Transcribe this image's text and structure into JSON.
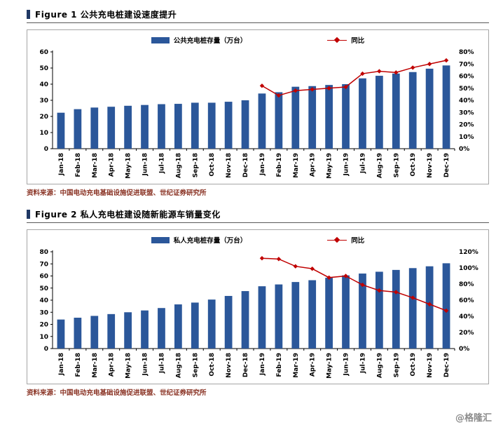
{
  "page": {
    "watermark": "@格隆汇"
  },
  "colors": {
    "bar": "#2B579A",
    "line": "#C00000",
    "accent": "#1F3864",
    "source_text": "#8A3324",
    "watermark": "#8C8C8C",
    "box_border": "#A6A6A6"
  },
  "figures": [
    {
      "title": "Figure 1  公共充电桩建设速度提升",
      "legend_bar": "公共充电桩存量（万台）",
      "legend_line": "同比",
      "source": "资料来源：中国电动充电基础设施促进联盟、世纪证券研究所"
    },
    {
      "title": "Figure 2  私人充电桩建设随新能源车销量变化",
      "legend_bar": "私人充电桩存量（万台）",
      "legend_line": "同比",
      "source": "资料来源：中国电动充电基础设施促进联盟、世纪证券研究所"
    }
  ],
  "chart_data": [
    {
      "type": "bar",
      "subtype": "combo-bar-line",
      "title": "公共充电桩建设速度提升",
      "categories": [
        "Jan-18",
        "Feb-18",
        "Mar-18",
        "Apr-18",
        "May-18",
        "Jun-18",
        "Jul-18",
        "Aug-18",
        "Sep-18",
        "Oct-18",
        "Nov-18",
        "Dec-18",
        "Jan-19",
        "Feb-19",
        "Mar-19",
        "Apr-19",
        "May-19",
        "Jun-19",
        "Jul-19",
        "Aug-19",
        "Sep-19",
        "Oct-19",
        "Nov-19",
        "Dec-19"
      ],
      "series": [
        {
          "name": "公共充电桩存量（万台）",
          "type": "bar",
          "axis": "left",
          "values": [
            22.3,
            24.5,
            25.5,
            26.0,
            26.6,
            27.1,
            27.6,
            27.8,
            28.5,
            28.5,
            29.1,
            30.0,
            34.2,
            35.0,
            38.4,
            38.8,
            39.5,
            40.0,
            43.6,
            45.2,
            46.6,
            47.5,
            49.6,
            51.6
          ]
        },
        {
          "name": "同比",
          "type": "line",
          "axis": "right",
          "values": [
            null,
            null,
            null,
            null,
            null,
            null,
            null,
            null,
            null,
            null,
            null,
            null,
            0.52,
            0.44,
            0.48,
            0.49,
            0.5,
            0.51,
            0.62,
            0.64,
            0.63,
            0.67,
            0.7,
            0.73
          ]
        }
      ],
      "y_left": {
        "min": 0,
        "max": 60,
        "step": 10,
        "format": "int"
      },
      "y_right": {
        "min": 0,
        "max": 0.8,
        "step": 0.1,
        "format": "percent"
      },
      "grid": false,
      "legend_position": "top-center"
    },
    {
      "type": "bar",
      "subtype": "combo-bar-line",
      "title": "私人充电桩建设随新能源车销量变化",
      "categories": [
        "Jan-18",
        "Feb-18",
        "Mar-18",
        "Apr-18",
        "May-18",
        "Jun-18",
        "Jul-18",
        "Aug-18",
        "Sep-18",
        "Oct-18",
        "Nov-18",
        "Dec-18",
        "Jan-19",
        "Feb-19",
        "Mar-19",
        "Apr-19",
        "May-19",
        "Jun-19",
        "Jul-19",
        "Aug-19",
        "Sep-19",
        "Oct-19",
        "Nov-19",
        "Dec-19"
      ],
      "series": [
        {
          "name": "私人充电桩存量（万台）",
          "type": "bar",
          "axis": "left",
          "values": [
            24.0,
            25.5,
            27.0,
            28.5,
            30.0,
            31.5,
            33.5,
            36.5,
            38.0,
            40.5,
            43.5,
            47.5,
            51.5,
            53.0,
            55.0,
            56.5,
            58.5,
            60.5,
            62.0,
            63.5,
            65.0,
            66.5,
            68.0,
            70.5
          ]
        },
        {
          "name": "同比",
          "type": "line",
          "axis": "right",
          "values": [
            null,
            null,
            null,
            null,
            null,
            null,
            null,
            null,
            null,
            null,
            null,
            null,
            1.12,
            1.11,
            1.02,
            0.99,
            0.88,
            0.9,
            0.79,
            0.72,
            0.7,
            0.63,
            0.55,
            0.47
          ]
        }
      ],
      "y_left": {
        "min": 0,
        "max": 80,
        "step": 10,
        "format": "int"
      },
      "y_right": {
        "min": 0,
        "max": 1.2,
        "step": 0.2,
        "format": "percent"
      },
      "grid": false,
      "legend_position": "top-center"
    }
  ]
}
